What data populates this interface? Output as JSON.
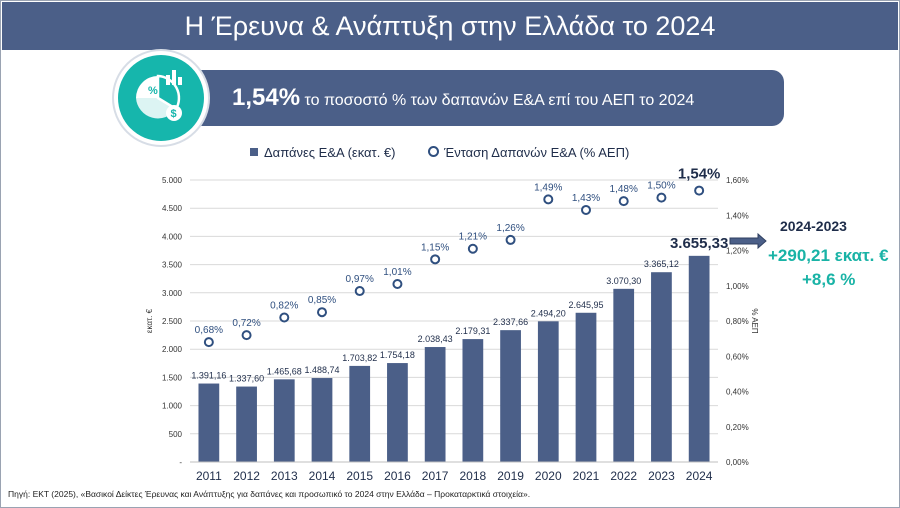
{
  "title": "Η Έρευνα & Ανάπτυξη στην Ελλάδα το 2024",
  "banner": {
    "value": "1,54%",
    "text": "το ποσοστό % των δαπανών Ε&Α επί του ΑΕΠ το 2024"
  },
  "icon": {
    "name": "percent-chart-money-icon",
    "percent_glyph": "%",
    "currency_glyph": "$"
  },
  "legend": {
    "bars": "Δαπάνες Ε&Α (εκατ. €)",
    "line": "Ένταση Δαπανών Ε&Α   (% ΑΕΠ)"
  },
  "side_note": {
    "title": "2024-2023",
    "change_abs": "+290,21 εκατ. €",
    "change_pct": "+8,6 %"
  },
  "source": "Πηγή: ΕΚΤ (2025), «Βασικοί Δείκτες Έρευνας και Ανάπτυξης για δαπάνες και προσωπικό το 2024 στην Ελλάδα – Προκαταρκτικά στοιχεία».",
  "colors": {
    "bar": "#4b5f88",
    "title_bg": "#4b5f88",
    "accent": "#16b6ac",
    "marker": "#2f4f7f"
  },
  "chart_data": {
    "type": "bar",
    "categories": [
      "2011",
      "2012",
      "2013",
      "2014",
      "2015",
      "2016",
      "2017",
      "2018",
      "2019",
      "2020",
      "2021",
      "2022",
      "2023",
      "2024"
    ],
    "series": [
      {
        "name": "Δαπάνες Ε&Α (εκατ. €)",
        "type": "bar",
        "axis": "left",
        "values": [
          1391.16,
          1337.6,
          1465.68,
          1488.74,
          1703.82,
          1754.18,
          2038.43,
          2179.31,
          2337.66,
          2494.2,
          2645.95,
          3070.3,
          3365.12,
          3655.33
        ],
        "labels": [
          "1.391,16",
          "1.337,60",
          "1.465,68",
          "1.488,74",
          "1.703,82",
          "1.754,18",
          "2.038,43",
          "2.179,31",
          "2.337,66",
          "2.494,20",
          "2.645,95",
          "3.070,30",
          "3.365,12",
          "3.655,33"
        ]
      },
      {
        "name": "Ένταση Δαπανών Ε&Α   (% ΑΕΠ)",
        "type": "scatter",
        "axis": "right",
        "values": [
          0.68,
          0.72,
          0.82,
          0.85,
          0.97,
          1.01,
          1.15,
          1.21,
          1.26,
          1.49,
          1.43,
          1.48,
          1.5,
          1.54
        ],
        "labels": [
          "0,68%",
          "0,72%",
          "0,82%",
          "0,85%",
          "0,97%",
          "1,01%",
          "1,15%",
          "1,21%",
          "1,26%",
          "1,49%",
          "1,43%",
          "1,48%",
          "1,50%",
          "1,54%"
        ]
      }
    ],
    "ylabel": "εκατ. €",
    "y2label": "% ΑΕΠ",
    "ylim": [
      0,
      5000
    ],
    "y2lim": [
      0,
      1.6
    ],
    "yticks": [
      "-",
      "500",
      "1.000",
      "1.500",
      "2.000",
      "2.500",
      "3.000",
      "3.500",
      "4.000",
      "4.500",
      "5.000"
    ],
    "y2ticks": [
      "0,00%",
      "0,20%",
      "0,40%",
      "0,60%",
      "0,80%",
      "1,00%",
      "1,20%",
      "1,40%",
      "1,60%"
    ],
    "grid": true
  }
}
